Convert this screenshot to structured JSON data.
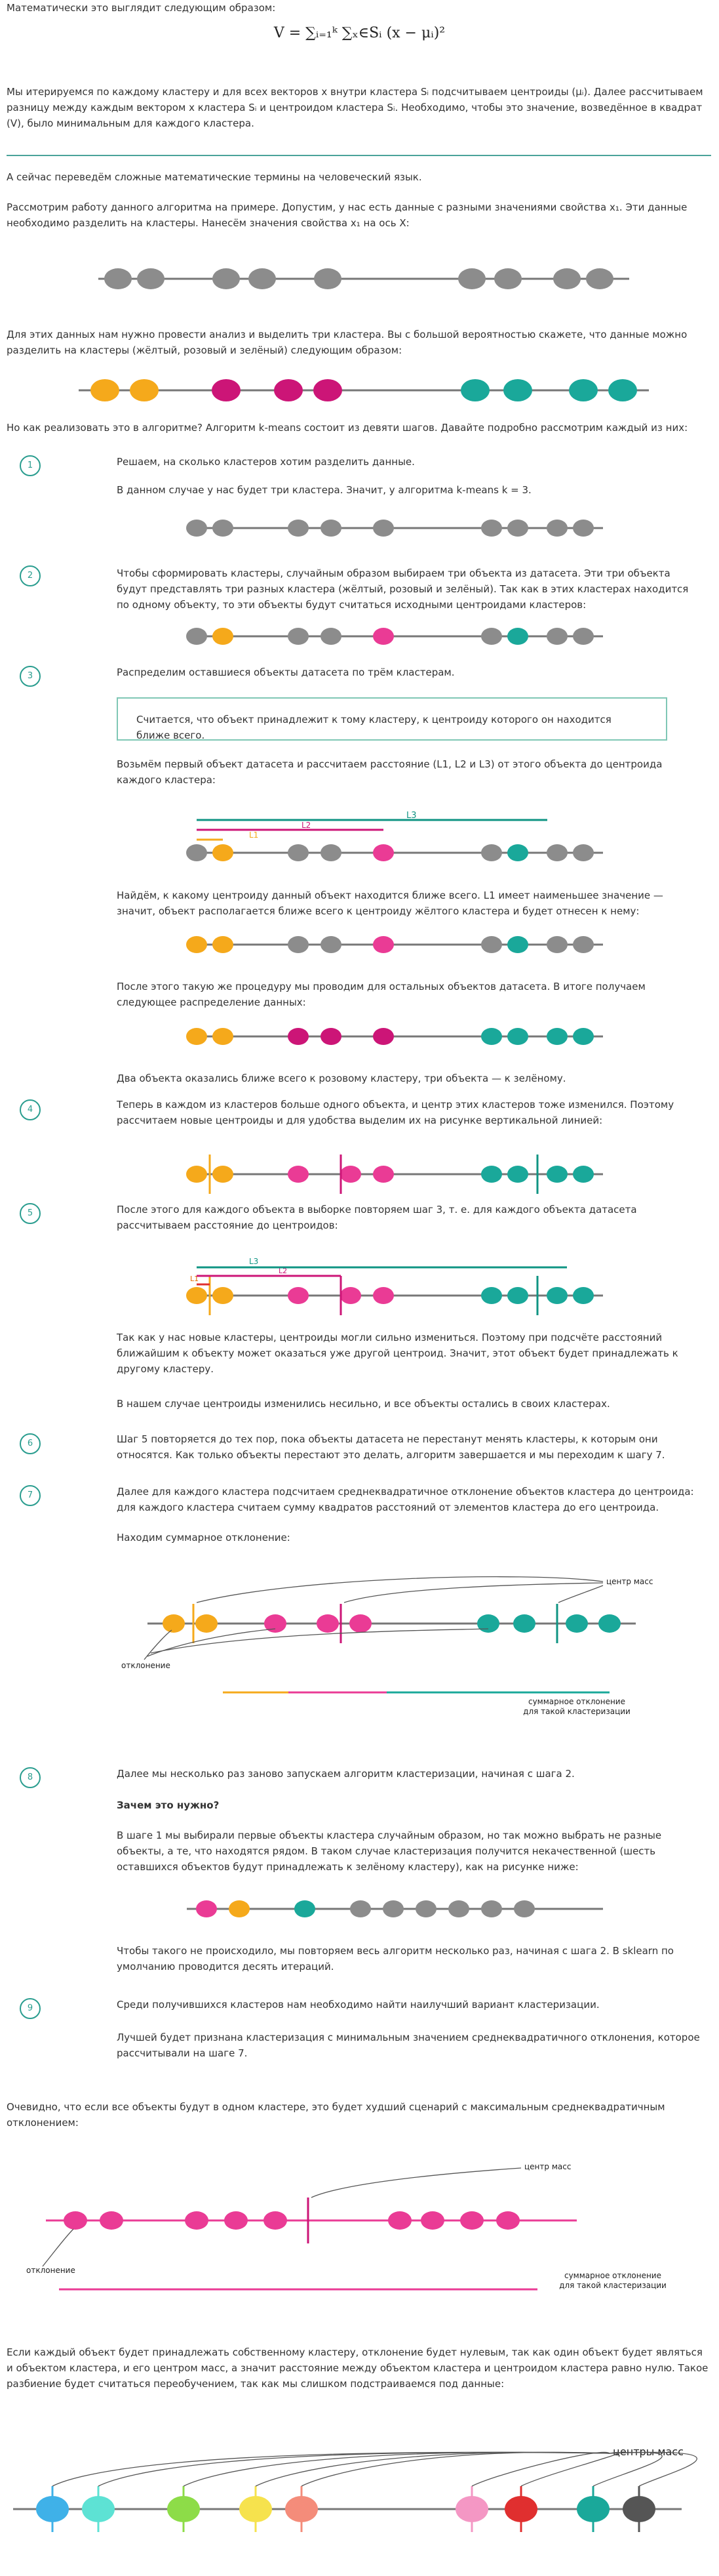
{
  "intro": "Математически это выглядит следующим образом:",
  "formula": "V = ∑ᵢ₌₁ᵏ ∑ₓ∈Sᵢ (x − μᵢ)²",
  "p_iterate": "Мы итерируемся по каждому кластеру и для всех векторов x внутри кластера Sᵢ подсчитываем центроиды (μᵢ). Далее рассчитываем разницу между каждым вектором x кластера Sᵢ и центроидом кластера Sᵢ. Необходимо, чтобы это значение, возведённое в квадрат (V), было минимальным для каждого кластера.",
  "p_translate": "А сейчас переведём сложные математические термины на человеческий язык.",
  "p_example": "Рассмотрим работу данного алгоритма на примере. Допустим, у нас есть данные с разными значениями свойства x₁. Эти данные необходимо разделить на кластеры. Нанесём значения свойства x₁ на ось X:",
  "p_three": "Для этих данных нам нужно провести анализ и выделить три кластера. Вы с большой вероятностью скажете, что данные можно разделить на кластеры (жёлтый, розовый и зелёный) следующим образом:",
  "p_how": "Но как реализовать это в алгоритме? Алгоритм k-means состоит из девяти шагов. Давайте подробно рассмотрим каждый из них:",
  "step_nums": [
    "1",
    "2",
    "3",
    "4",
    "5",
    "6",
    "7",
    "8",
    "9"
  ],
  "s1a": "Решаем, на сколько кластеров хотим разделить данные.",
  "s1b": "В данном случае у нас будет три кластера. Значит, у алгоритма k-means k = 3.",
  "s2": "Чтобы сформировать кластеры, случайным образом выбираем три объекта из датасета. Эти три объекта будут представлять три разных кластера (жёлтый, розовый и зелёный). Так как в этих кластерах находится по одному объекту, то эти объекты будут считаться исходными центроидами кластеров:",
  "s3": "Распределим оставшиеся объекты датасета по трём кластерам.",
  "s3_note": "Считается, что объект принадлежит к тому кластеру, к центроиду которого он находится ближе всего.",
  "s3b": "Возьмём первый объект датасета и рассчитаем расстояние (L1, L2 и L3) от этого объекта до центроида каждого кластера:",
  "s3c": "Найдём, к какому центроиду данный объект находится ближе всего. L1 имеет наименьшее значение — значит, объект располагается ближе всего к центроиду жёлтого кластера и будет отнесен к нему:",
  "s3d": "После этого такую же процедуру мы проводим для остальных объектов датасета. В итоге получаем следующее распределение данных:",
  "s3e": "Два объекта оказались ближе всего к розовому кластеру, три объекта — к зелёному.",
  "s4": "Теперь в каждом из кластеров больше одного объекта, и центр этих кластеров тоже изменился. Поэтому рассчитаем новые центроиды и для удобства выделим их на рисунке вертикальной линией:",
  "s5": "После этого для каждого объекта в выборке повторяем шаг 3, т. е. для каждого объекта датасета рассчитываем расстояние до центроидов:",
  "s5b": "Так как у нас новые кластеры, центроиды могли сильно измениться. Поэтому при подсчёте расстояний ближайшим к объекту может оказаться уже другой центроид. Значит, этот объект будет принадлежать к другому кластеру.",
  "s5c": "В нашем случае центроиды изменились несильно, и все объекты остались в своих кластерах.",
  "s6": "Шаг 5 повторяется до тех пор, пока объекты датасета не перестанут менять кластеры, к которым они относятся. Как только объекты перестают это делать, алгоритм завершается и мы переходим к шагу 7.",
  "s7": "Далее для каждого кластера подсчитаем среднеквадратичное отклонение объектов кластера до центроида: для каждого кластера считаем сумму квадратов расстояний от элементов кластера до его центроида.",
  "s7b": "Находим суммарное отклонение:",
  "s8": "Далее мы несколько раз заново запускаем алгоритм кластеризации, начиная с шага 2.",
  "s8_q": "Зачем это нужно?",
  "s8b": "В шаге 1 мы выбирали первые объекты кластера случайным образом, но так можно выбрать не разные объекты, а те, что находятся рядом. В таком случае кластеризация получится некачественной (шесть оставшихся объектов будут принадлежать к зелёному кластеру), как на рисунке ниже:",
  "s8c": "Чтобы такого не происходило, мы повторяем весь алгоритм несколько раз, начиная с шага 2. В sklearn по умолчанию проводится десять итераций.",
  "s9": "Среди получившихся кластеров нам необходимо найти наилучший вариант кластеризации.",
  "s9b": "Лучшей будет признана кластеризация с минимальным значением среднеквадратичного отклонения, которое рассчитывали на шаге 7.",
  "p_worst": "Очевидно, что если все объекты будут в одном кластере, это будет худший сценарий с максимальным среднеквадратичным отклонением:",
  "p_zero": "Если каждый объект будет принадлежать собственному кластеру, отклонение будет нулевым, так как один объект будет являться и объектом кластера, и его центром масс, а значит расстояние между объектом кластера и центроидом кластера равно нулю. Такое разбиение будет считаться переобучением, так как мы слишком подстраиваемся под данные:",
  "labels": {
    "L1": "L1",
    "L2": "L2",
    "L3": "L3",
    "center": "центр масс",
    "deviation": "отклонение",
    "total": "суммарное отклонение\nдля такой кластеризации",
    "centers": "центры масс"
  },
  "colors": {
    "grey": "#8c8c8c",
    "yellow": "#f5a91b",
    "pink": "#ea3b95",
    "magenta": "#cc1577",
    "green": "#1aa89a",
    "darkgreen": "#0f9483",
    "accent": "#2a9d8f",
    "red": "#e02f2f"
  }
}
